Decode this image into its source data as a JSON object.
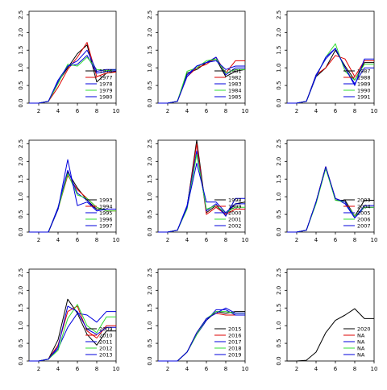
{
  "chart_data": {
    "type": "line",
    "layout": "3x3 grid of small-multiple line plots",
    "xlim": [
      1,
      10
    ],
    "ylim": [
      0,
      2.6
    ],
    "x_ticks": [
      2,
      4,
      6,
      8,
      10
    ],
    "y_ticks": [
      0.0,
      0.5,
      1.0,
      1.5,
      2.0,
      2.5
    ],
    "y_tick_labels": [
      "0.0",
      "0.5",
      "1.0",
      "1.5",
      "2.0",
      "2.5"
    ],
    "grid": false,
    "legend_placement": "bottom-right",
    "x": [
      1,
      2,
      3,
      4,
      5,
      6,
      7,
      8,
      9,
      10
    ],
    "series_colors": [
      "#000000",
      "#dd0000",
      "#0000dd",
      "#33dd33",
      "#0000dd"
    ],
    "panels": [
      {
        "series": [
          {
            "name": "1976",
            "color": "#000000",
            "values": [
              0,
              0,
              0.05,
              0.6,
              1.0,
              1.4,
              1.65,
              0.6,
              0.85,
              0.9
            ]
          },
          {
            "name": "1977",
            "color": "#dd0000",
            "values": [
              0,
              0,
              0.05,
              0.45,
              0.95,
              1.3,
              1.72,
              0.75,
              0.85,
              0.88
            ]
          },
          {
            "name": "1978",
            "color": "#0000dd",
            "values": [
              0,
              0,
              0.05,
              0.6,
              1.05,
              1.1,
              1.35,
              0.85,
              0.9,
              0.92
            ]
          },
          {
            "name": "1979",
            "color": "#33dd33",
            "values": [
              0,
              0,
              0.05,
              0.55,
              1.1,
              1.05,
              1.3,
              0.95,
              0.92,
              0.95
            ]
          },
          {
            "name": "1980",
            "color": "#0000dd",
            "values": [
              0,
              0,
              0.05,
              0.65,
              1.05,
              1.2,
              1.5,
              0.9,
              0.95,
              0.95
            ]
          }
        ]
      },
      {
        "series": [
          {
            "name": "1981",
            "color": "#000000",
            "values": [
              0,
              0,
              0.05,
              0.85,
              0.95,
              1.15,
              1.25,
              0.75,
              0.9,
              0.95
            ]
          },
          {
            "name": "1982",
            "color": "#dd0000",
            "values": [
              0,
              0,
              0.05,
              0.75,
              1.0,
              1.1,
              1.3,
              0.85,
              1.2,
              1.2
            ]
          },
          {
            "name": "1983",
            "color": "#0000dd",
            "values": [
              0,
              0,
              0.05,
              0.8,
              1.05,
              1.15,
              1.3,
              0.8,
              1.0,
              1.0
            ]
          },
          {
            "name": "1984",
            "color": "#33dd33",
            "values": [
              0,
              0,
              0.05,
              0.9,
              1.0,
              1.2,
              1.25,
              0.85,
              0.95,
              0.95
            ]
          },
          {
            "name": "1985",
            "color": "#0000dd",
            "values": [
              0,
              0,
              0.05,
              0.75,
              1.05,
              1.15,
              1.2,
              0.95,
              1.05,
              1.05
            ]
          }
        ]
      },
      {
        "series": [
          {
            "name": "1987",
            "color": "#000000",
            "values": [
              0,
              0,
              0.05,
              0.75,
              1.0,
              1.5,
              1.05,
              0.65,
              1.15,
              1.15
            ]
          },
          {
            "name": "1988",
            "color": "#dd0000",
            "values": [
              0,
              0,
              0.05,
              0.8,
              1.0,
              1.35,
              1.25,
              0.75,
              1.2,
              1.2
            ]
          },
          {
            "name": "1989",
            "color": "#0000dd",
            "values": [
              0,
              0,
              0.05,
              0.8,
              1.25,
              1.55,
              1.0,
              0.55,
              1.0,
              1.0
            ]
          },
          {
            "name": "1990",
            "color": "#33dd33",
            "values": [
              0,
              0,
              0.05,
              0.75,
              1.3,
              1.68,
              0.9,
              0.65,
              1.1,
              1.1
            ]
          },
          {
            "name": "1991",
            "color": "#0000dd",
            "values": [
              0,
              0,
              0.05,
              0.75,
              1.3,
              1.55,
              1.0,
              0.5,
              1.25,
              1.25
            ]
          }
        ]
      },
      {
        "series": [
          {
            "name": "1993",
            "color": "#000000",
            "values": [
              0,
              0,
              0,
              0.65,
              1.7,
              1.25,
              0.9,
              0.65,
              0.65,
              0.65
            ]
          },
          {
            "name": "1994",
            "color": "#dd0000",
            "values": [
              0,
              0,
              0,
              0.65,
              1.6,
              1.2,
              0.95,
              0.7,
              0.6,
              0.6
            ]
          },
          {
            "name": "1995",
            "color": "#0000dd",
            "values": [
              0,
              0,
              0,
              0.7,
              1.75,
              1.1,
              0.9,
              0.6,
              0.65,
              0.65
            ]
          },
          {
            "name": "1996",
            "color": "#33dd33",
            "values": [
              0,
              0,
              0,
              0.65,
              1.65,
              1.05,
              0.95,
              0.7,
              0.6,
              0.6
            ]
          },
          {
            "name": "1997",
            "color": "#0000dd",
            "values": [
              0,
              0,
              0,
              0.65,
              2.05,
              0.75,
              0.85,
              0.6,
              0.65,
              0.65
            ]
          }
        ]
      },
      {
        "series": [
          {
            "name": "1998",
            "color": "#000000",
            "values": [
              0,
              0,
              0.05,
              0.7,
              2.6,
              0.55,
              0.75,
              0.5,
              0.8,
              0.85
            ]
          },
          {
            "name": "1999",
            "color": "#dd0000",
            "values": [
              0,
              0,
              0.05,
              0.7,
              2.5,
              0.5,
              0.7,
              0.5,
              0.65,
              0.65
            ]
          },
          {
            "name": "2000",
            "color": "#0000dd",
            "values": [
              0,
              0,
              0.05,
              0.75,
              2.3,
              0.6,
              0.8,
              0.45,
              0.95,
              0.95
            ]
          },
          {
            "name": "2001",
            "color": "#33dd33",
            "values": [
              0,
              0,
              0.05,
              0.65,
              2.2,
              0.65,
              0.75,
              0.55,
              0.7,
              0.7
            ]
          },
          {
            "name": "2002",
            "color": "#0000dd",
            "values": [
              0,
              0,
              0.05,
              0.7,
              1.95,
              0.85,
              0.85,
              0.55,
              0.8,
              0.8
            ]
          }
        ]
      },
      {
        "series": [
          {
            "name": "2003",
            "color": "#000000",
            "values": [
              0,
              0,
              0.05,
              0.85,
              1.85,
              0.9,
              0.9,
              0.45,
              0.9,
              0.9
            ]
          },
          {
            "name": "2004",
            "color": "#dd0000",
            "values": [
              0,
              0,
              0.05,
              0.85,
              1.85,
              0.95,
              0.85,
              0.45,
              0.7,
              0.7
            ]
          },
          {
            "name": "2005",
            "color": "#0000dd",
            "values": [
              0,
              0,
              0.05,
              0.85,
              1.8,
              0.95,
              0.8,
              0.4,
              0.7,
              0.7
            ]
          },
          {
            "name": "2006",
            "color": "#33dd33",
            "values": [
              0,
              0,
              0.05,
              0.8,
              1.8,
              0.9,
              0.85,
              0.45,
              0.7,
              0.7
            ]
          },
          {
            "name": "2007",
            "color": "#0000dd",
            "values": [
              0,
              0,
              0.05,
              0.85,
              1.85,
              0.95,
              0.85,
              0.4,
              0.75,
              0.75
            ]
          }
        ]
      },
      {
        "series": [
          {
            "name": "2009",
            "color": "#000000",
            "values": [
              0,
              0,
              0.05,
              0.6,
              1.75,
              1.35,
              0.75,
              0.45,
              0.85,
              0.85
            ]
          },
          {
            "name": "2010",
            "color": "#dd0000",
            "values": [
              0,
              0,
              0.05,
              0.45,
              1.4,
              1.55,
              0.85,
              0.65,
              1.0,
              1.0
            ]
          },
          {
            "name": "2011",
            "color": "#0000dd",
            "values": [
              0,
              0,
              0.05,
              0.35,
              0.95,
              1.35,
              1.3,
              1.1,
              1.4,
              1.4
            ]
          },
          {
            "name": "2012",
            "color": "#33dd33",
            "values": [
              0,
              0,
              0.05,
              0.3,
              1.2,
              1.6,
              1.0,
              0.8,
              1.25,
              1.25
            ]
          },
          {
            "name": "2013",
            "color": "#0000dd",
            "values": [
              0,
              0,
              0.05,
              0.4,
              1.55,
              1.4,
              0.9,
              0.75,
              0.95,
              0.95
            ]
          }
        ]
      },
      {
        "series": [
          {
            "name": "2015",
            "color": "#000000",
            "values": [
              0,
              0,
              0,
              0.25,
              0.75,
              1.15,
              1.4,
              1.35,
              1.4,
              1.4
            ]
          },
          {
            "name": "2016",
            "color": "#dd0000",
            "values": [
              0,
              0,
              0,
              0.25,
              0.8,
              1.2,
              1.35,
              1.3,
              1.3,
              1.3
            ]
          },
          {
            "name": "2017",
            "color": "#0000dd",
            "values": [
              0,
              0,
              0,
              0.25,
              0.75,
              1.15,
              1.45,
              1.45,
              1.3,
              1.3
            ]
          },
          {
            "name": "2018",
            "color": "#33dd33",
            "values": [
              0,
              0,
              0,
              0.25,
              0.75,
              1.2,
              1.4,
              1.4,
              1.35,
              1.35
            ]
          },
          {
            "name": "2019",
            "color": "#0000dd",
            "values": [
              0,
              0,
              0,
              0.25,
              0.8,
              1.2,
              1.35,
              1.5,
              1.35,
              1.35
            ]
          }
        ]
      },
      {
        "series": [
          {
            "name": "2020",
            "color": "#000000",
            "values": [
              0,
              0,
              0.02,
              0.25,
              0.8,
              1.15,
              1.3,
              1.48,
              1.2,
              1.2
            ]
          },
          {
            "name": "NA",
            "color": "#dd0000",
            "values": []
          },
          {
            "name": "NA",
            "color": "#0000dd",
            "values": []
          },
          {
            "name": "NA",
            "color": "#33dd33",
            "values": []
          },
          {
            "name": "NA",
            "color": "#0000dd",
            "values": []
          }
        ]
      }
    ]
  }
}
